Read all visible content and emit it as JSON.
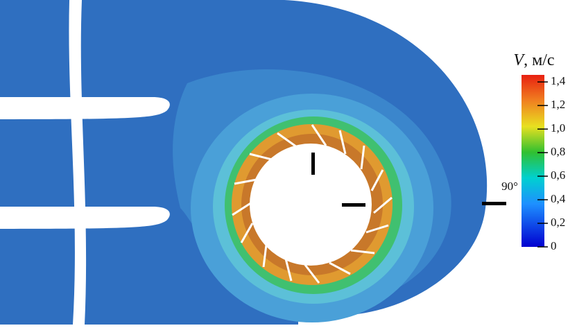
{
  "colorbar": {
    "variable": "V",
    "unit": ", м/с",
    "range": [
      0,
      1.46
    ],
    "ticks": [
      0,
      {
        "value": 0.2,
        "label": "0,2"
      },
      {
        "value": 0.4,
        "label": "0,4"
      },
      {
        "value": 0.6,
        "label": "0,6"
      },
      {
        "value": 0.8,
        "label": "0,8"
      },
      {
        "value": 1.0,
        "label": "1,0"
      },
      {
        "value": 1.2,
        "label": "1,2"
      },
      {
        "value": 1.4,
        "label": "1,4"
      }
    ]
  },
  "annotation": "90°"
}
